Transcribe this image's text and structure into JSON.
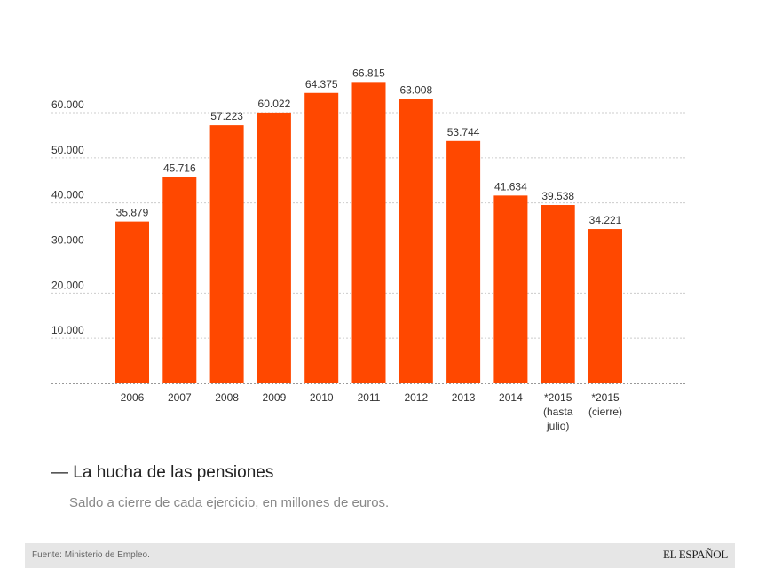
{
  "chart_data": {
    "type": "bar",
    "title": "La hucha de las pensiones",
    "subtitle": "Saldo a cierre de cada ejercicio, en millones de euros.",
    "categories": [
      "2006",
      "2007",
      "2008",
      "2009",
      "2010",
      "2011",
      "2012",
      "2013",
      "2014",
      "*2015 (hasta julio)",
      "*2015 (cierre)"
    ],
    "category_lines": [
      [
        "2006"
      ],
      [
        "2007"
      ],
      [
        "2008"
      ],
      [
        "2009"
      ],
      [
        "2010"
      ],
      [
        "2011"
      ],
      [
        "2012"
      ],
      [
        "2013"
      ],
      [
        "2014"
      ],
      [
        "*2015",
        "(hasta",
        "julio)"
      ],
      [
        "*2015",
        "(cierre)"
      ]
    ],
    "values": [
      35879,
      45716,
      57223,
      60022,
      64375,
      66815,
      63008,
      53744,
      41634,
      39538,
      34221
    ],
    "value_labels": [
      "35.879",
      "45.716",
      "57.223",
      "60.022",
      "64.375",
      "66.815",
      "63.008",
      "53.744",
      "41.634",
      "39.538",
      "34.221"
    ],
    "yticks": [
      10000,
      20000,
      30000,
      40000,
      50000,
      60000
    ],
    "ytick_labels": [
      "10.000",
      "20.000",
      "30.000",
      "40.000",
      "50.000",
      "60.000"
    ],
    "ylim": [
      0,
      70000
    ],
    "grid": true,
    "bar_color": "#ff4800",
    "xlabel": "",
    "ylabel": ""
  },
  "footer": {
    "source": "Fuente: Ministerio de Empleo.",
    "logo": "EL ESPAÑOL"
  }
}
